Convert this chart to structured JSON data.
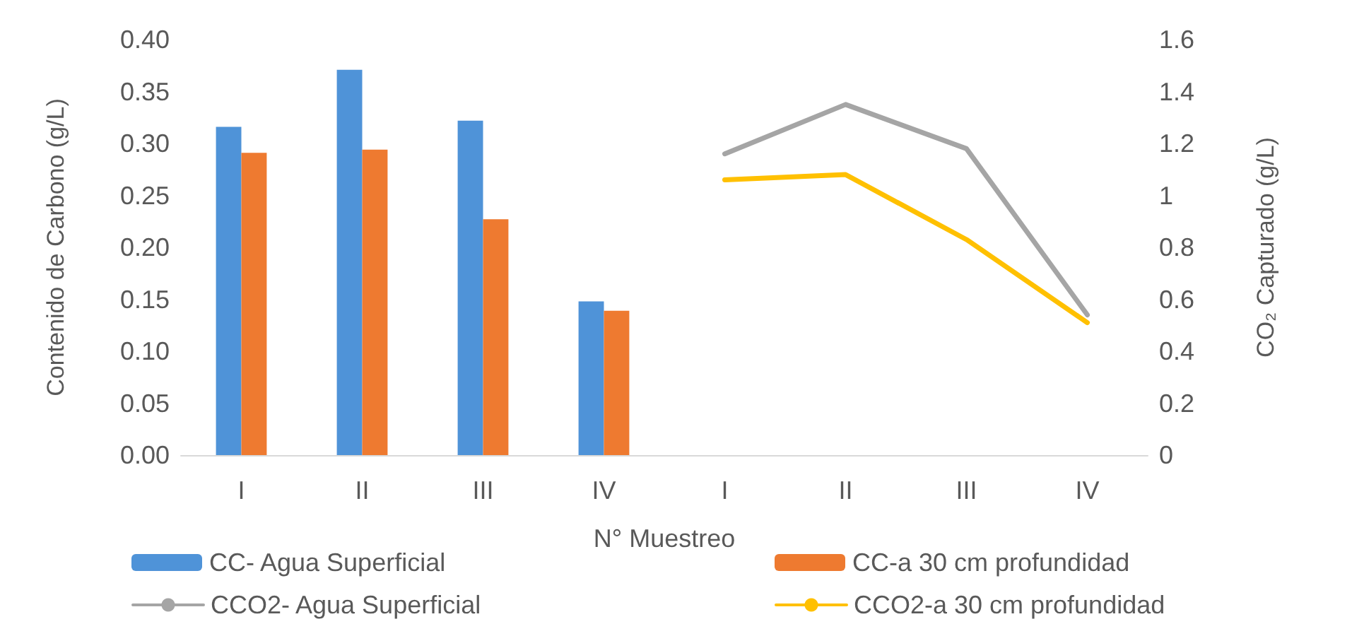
{
  "chart_data": {
    "type": "bar",
    "xlabel": "N° Muestreo",
    "ylabel": "Contenido de Carbono (g/L)",
    "y2label": "CO₂ Capturado (g/L)",
    "categories": [
      "I",
      "II",
      "III",
      "IV",
      "I",
      "II",
      "III",
      "IV"
    ],
    "series": [
      {
        "name": "CC- Agua Superficial",
        "color": "#4f93d8",
        "values": [
          0.316,
          0.371,
          0.322,
          0.148,
          null,
          null,
          null,
          null
        ]
      },
      {
        "name": "CC-a 30 cm profundidad",
        "color": "#ee7a30",
        "values": [
          0.291,
          0.294,
          0.227,
          0.139,
          null,
          null,
          null,
          null
        ]
      },
      {
        "name": "CCO2- Agua Superficial",
        "type": "line",
        "axis": "y2",
        "color": "#a5a5a5",
        "values": [
          null,
          null,
          null,
          null,
          1.16,
          1.35,
          1.18,
          0.54
        ]
      },
      {
        "name": "CCO2-a 30 cm profundidad",
        "type": "line",
        "axis": "y2",
        "color": "#ffc000",
        "values": [
          null,
          null,
          null,
          null,
          1.06,
          1.08,
          0.83,
          0.51
        ]
      }
    ],
    "ylim": [
      0,
      0.4
    ],
    "yticks": [
      {
        "value": 0,
        "label": "0.00"
      },
      {
        "value": 0.05,
        "label": "0.05"
      },
      {
        "value": 0.1,
        "label": "0.10"
      },
      {
        "value": 0.15,
        "label": "0.15"
      },
      {
        "value": 0.2,
        "label": "0.20"
      },
      {
        "value": 0.25,
        "label": "0.25"
      },
      {
        "value": 0.3,
        "label": "0.30"
      },
      {
        "value": 0.35,
        "label": "0.35"
      },
      {
        "value": 0.4,
        "label": "0.40"
      }
    ],
    "y2lim": [
      0,
      1.6
    ],
    "y2ticks": [
      0,
      0.2,
      0.4,
      0.6,
      0.8,
      1,
      1.2,
      1.4,
      1.6
    ],
    "grid": false,
    "legend": "bottom",
    "marker": "none",
    "line_style": "solid"
  }
}
